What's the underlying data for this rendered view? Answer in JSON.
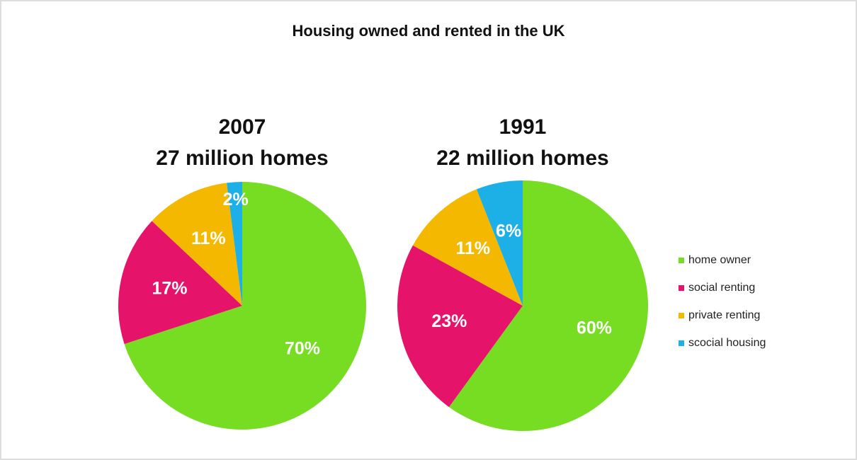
{
  "title": "Housing owned and rented in the UK",
  "legend": "right",
  "chart_data": [
    {
      "type": "pie",
      "title": "2007",
      "subtitle": "27 million homes",
      "categories": [
        "home owner",
        "social renting",
        "private renting",
        "scocial housing"
      ],
      "values": [
        70,
        17,
        11,
        2
      ],
      "value_labels": [
        "70%",
        "17%",
        "11%",
        "2%"
      ],
      "colors": [
        "#77dd22",
        "#e6136b",
        "#f5b800",
        "#1cb0e6"
      ]
    },
    {
      "type": "pie",
      "title": "1991",
      "subtitle": "22 million homes",
      "categories": [
        "home owner",
        "social renting",
        "private renting",
        "scocial housing"
      ],
      "values": [
        60,
        23,
        11,
        6
      ],
      "value_labels": [
        "60%",
        "23%",
        "11%",
        "6%"
      ],
      "colors": [
        "#77dd22",
        "#e6136b",
        "#f5b800",
        "#1cb0e6"
      ]
    }
  ]
}
